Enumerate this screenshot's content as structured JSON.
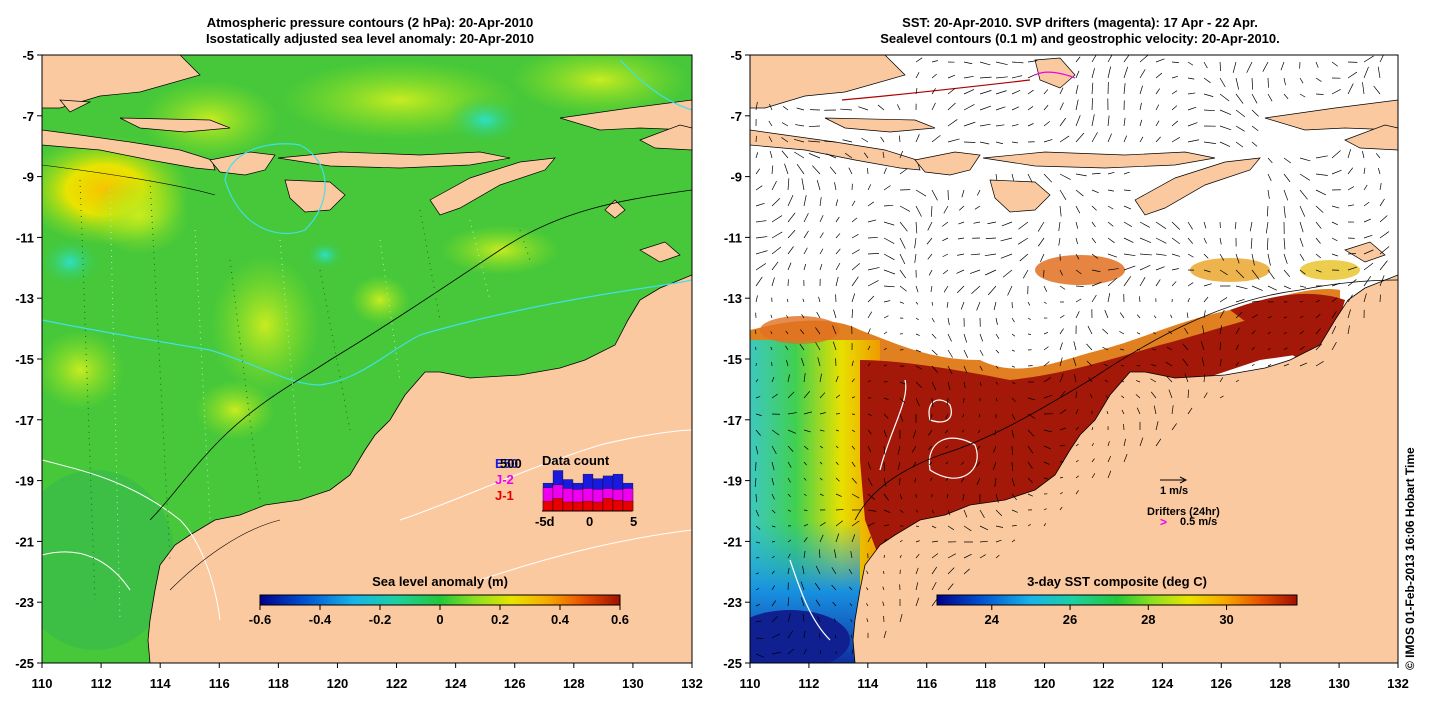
{
  "left_panel": {
    "title_line1": "Atmospheric pressure contours (2 hPa): 20-Apr-2010",
    "title_line2": "Isostatically adjusted sea level anomaly: 20-Apr-2010",
    "x_ticks": [
      "110",
      "112",
      "114",
      "116",
      "118",
      "120",
      "122",
      "124",
      "126",
      "128",
      "130",
      "132"
    ],
    "y_ticks": [
      "-5",
      "-7",
      "-9",
      "-11",
      "-13",
      "-15",
      "-17",
      "-19",
      "-21",
      "-23",
      "-25"
    ],
    "colorbar": {
      "label": "Sea level anomaly (m)",
      "ticks": [
        "-0.6",
        "-0.4",
        "-0.2",
        "0",
        "0.2",
        "0.4",
        "0.6"
      ],
      "range": [
        -0.6,
        0.6
      ],
      "colors": [
        "#00008b",
        "#0050d0",
        "#18b4e8",
        "#1ed0a0",
        "#22c83a",
        "#8fe020",
        "#e8e400",
        "#f8a800",
        "#e85000",
        "#a01000"
      ]
    },
    "inset": {
      "title": "Data count",
      "labels": [
        "E50",
        "J-2",
        "J-1"
      ],
      "label_colors": [
        "#1a1adc",
        "#ee00ee",
        "#e80000"
      ],
      "overlap_label": "500",
      "x_ticks": [
        "-5d",
        "0",
        "5"
      ],
      "bars_blue": [
        0.62,
        0.9,
        0.7,
        0.62,
        0.82,
        0.72,
        0.78,
        0.82,
        0.62
      ],
      "bars_magenta": [
        0.52,
        0.58,
        0.5,
        0.48,
        0.5,
        0.48,
        0.5,
        0.48,
        0.5
      ],
      "bars_red": [
        0.22,
        0.28,
        0.2,
        0.2,
        0.22,
        0.2,
        0.28,
        0.24,
        0.22
      ]
    }
  },
  "right_panel": {
    "title_line1": "SST: 20-Apr-2010. SVP drifters (magenta): 17 Apr - 22 Apr.",
    "title_line2": "Sealevel contours (0.1 m) and geostrophic velocity: 20-Apr-2010.",
    "x_ticks": [
      "110",
      "112",
      "114",
      "116",
      "118",
      "120",
      "122",
      "124",
      "126",
      "128",
      "130",
      "132"
    ],
    "y_ticks": [
      "-5",
      "-7",
      "-9",
      "-11",
      "-13",
      "-15",
      "-17",
      "-19",
      "-21",
      "-23",
      "-25"
    ],
    "colorbar": {
      "label": "3-day SST composite (deg C)",
      "ticks": [
        "24",
        "26",
        "28",
        "30"
      ],
      "range": [
        22.6,
        31.8
      ],
      "colors": [
        "#00008b",
        "#0050d0",
        "#18b4e8",
        "#1ed0a0",
        "#22c83a",
        "#8fe020",
        "#e8e400",
        "#f8a800",
        "#e85000",
        "#a01000"
      ]
    },
    "legend": {
      "velocity_label": "1 m/s",
      "drifters_label": "Drifters (24hr)",
      "drifter_speed_label": "0.5 m/s",
      "drifter_symbol": ">"
    }
  },
  "credit": "© IMOS 01-Feb-2013 16:06 Hobart Time",
  "colors": {
    "land": "#fbc9a0",
    "ocean_green": "#3ec83a",
    "sst_red": "#a31808"
  }
}
